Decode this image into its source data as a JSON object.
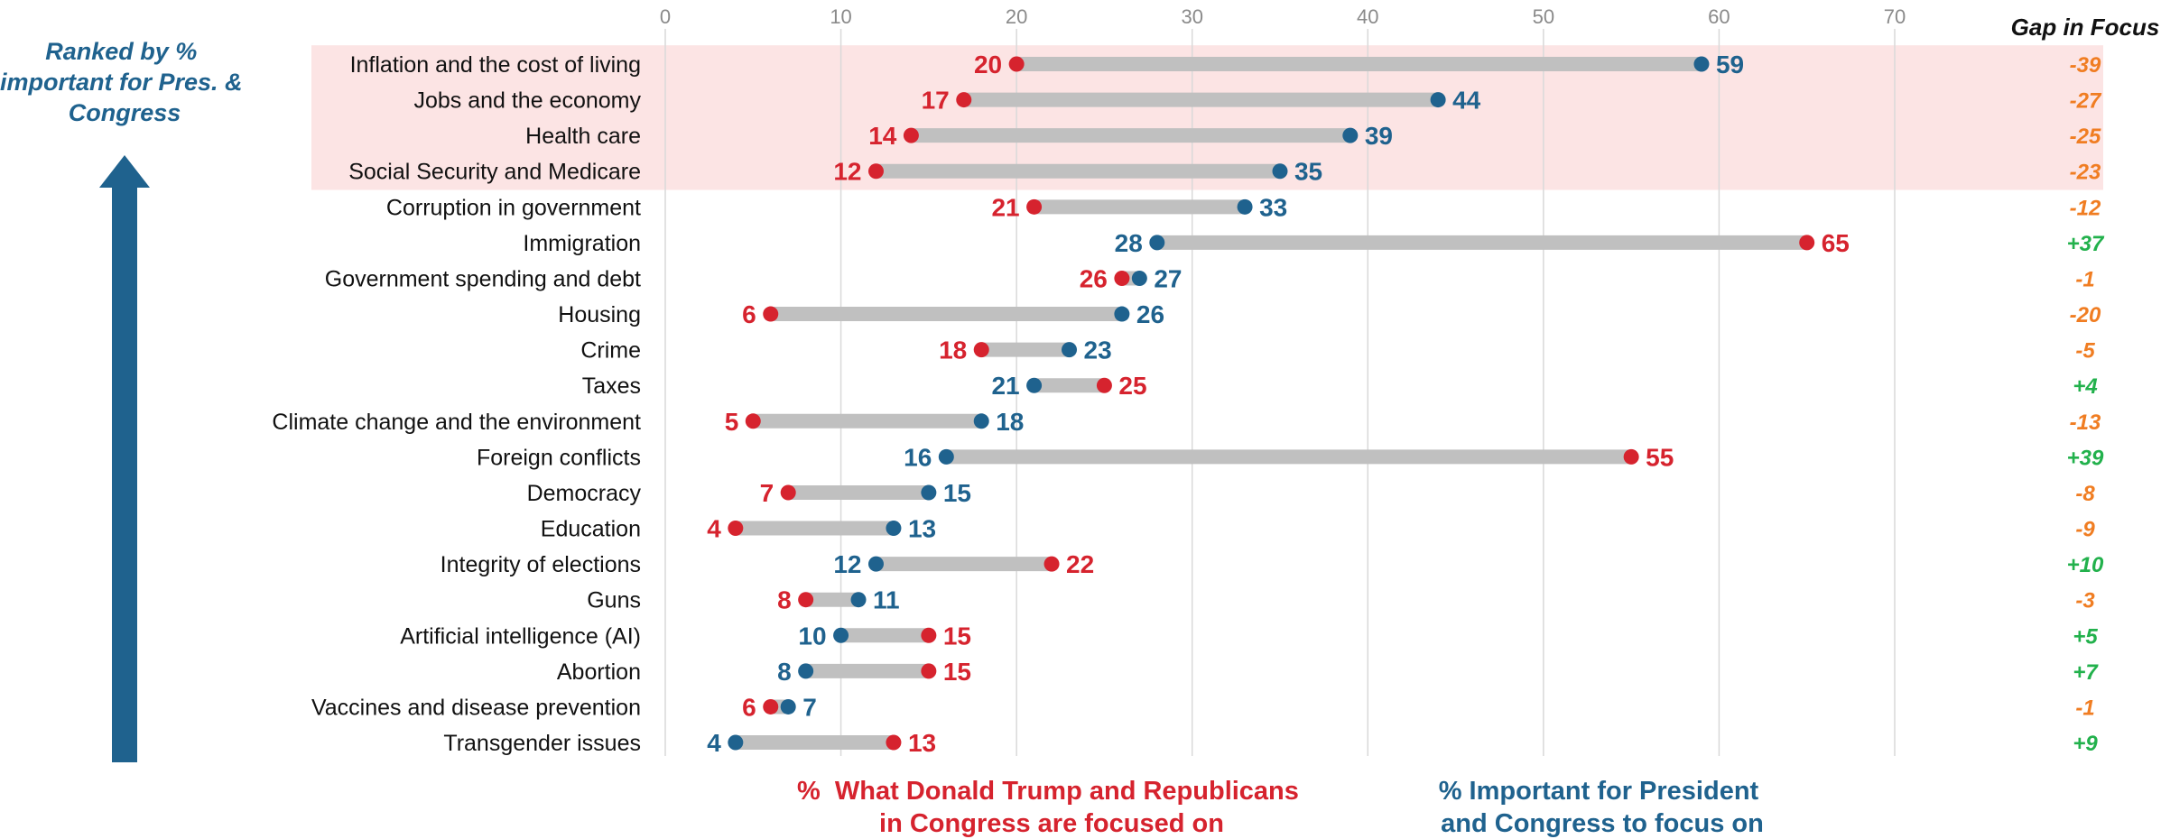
{
  "colors": {
    "focused_red": "#d6232e",
    "important_blue": "#1f628e",
    "bar_gray": "#c0c0c0",
    "highlight_pink": "#fce4e4",
    "gap_negative": "#f07d22",
    "gap_positive": "#22b14c",
    "grid": "#d9d9d9"
  },
  "side_label": [
    "Ranked by %",
    "important for Pres. &",
    "Congress"
  ],
  "gap_header": "Gap in Focus",
  "legend": {
    "focused": [
      "%  What Donald Trump and Republicans",
      "in Congress are focused on"
    ],
    "important": [
      "% Important for President",
      "and Congress to focus on"
    ]
  },
  "chart_data": {
    "type": "dumbbell",
    "xlim": [
      0,
      70
    ],
    "xticks": [
      "0",
      "10",
      "20",
      "30",
      "40",
      "50",
      "60",
      "70"
    ],
    "grid": true,
    "highlighted_rows": 4,
    "categories": [
      "Inflation and the cost of living",
      "Jobs and the economy",
      "Health care",
      "Social Security and Medicare",
      "Corruption in government",
      "Immigration",
      "Government spending and debt",
      "Housing",
      "Crime",
      "Taxes",
      "Climate change and the environment",
      "Foreign conflicts",
      "Democracy",
      "Education",
      "Integrity of elections",
      "Guns",
      "Artificial intelligence (AI)",
      "Abortion",
      "Vaccines and disease prevention",
      "Transgender issues"
    ],
    "series": [
      {
        "name": "% What Donald Trump and Republicans in Congress are focused on",
        "values": [
          20,
          17,
          14,
          12,
          21,
          65,
          26,
          6,
          18,
          25,
          5,
          55,
          7,
          4,
          22,
          8,
          15,
          15,
          6,
          13
        ]
      },
      {
        "name": "% Important for President and Congress to focus on",
        "values": [
          59,
          44,
          39,
          35,
          33,
          28,
          27,
          26,
          23,
          21,
          18,
          16,
          15,
          13,
          12,
          11,
          10,
          8,
          7,
          4
        ]
      }
    ],
    "gap_labels": [
      "-39",
      "-27",
      "-25",
      "-23",
      "-12",
      "+37",
      "-1",
      "-20",
      "-5",
      "+4",
      "-13",
      "+39",
      "-8",
      "-9",
      "+10",
      "-3",
      "+5",
      "+7",
      "-1",
      "+9"
    ]
  }
}
